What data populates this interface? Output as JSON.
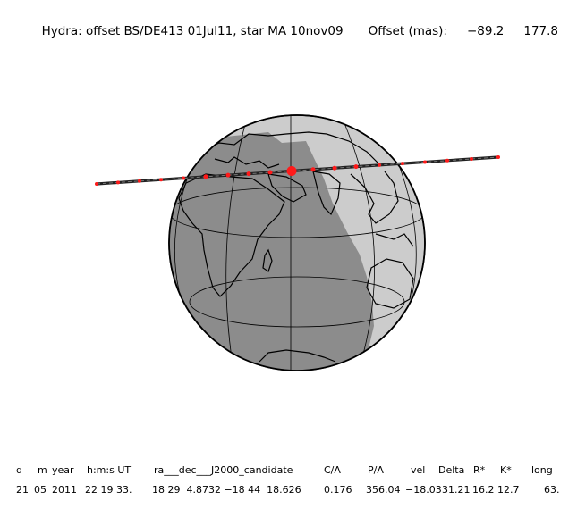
{
  "header": {
    "title": "Hydra: offset BS/DE413 01Jul11, star MA 10nov09",
    "offset_label": "Offset (mas):",
    "offset_ra": "−89.2",
    "offset_dec": "177.8"
  },
  "colors": {
    "night": "#8c8c8c",
    "day": "#cccccc",
    "track": "#222222",
    "track_dots": "#ff1a1a"
  },
  "table": {
    "headers": [
      "d",
      "m",
      "year",
      "h:m:s UT",
      "ra___dec___J2000_candidate",
      "C/A",
      "P/A",
      "vel",
      "Delta",
      "R*",
      "K*",
      "long"
    ],
    "values": [
      "21",
      "05",
      "2011",
      "22 19 33.",
      "18 29  4.8732 −18 44  18.626",
      "0.176",
      "356.04",
      "−18.03",
      "31.21",
      "16.2",
      "12.7",
      "63."
    ]
  }
}
